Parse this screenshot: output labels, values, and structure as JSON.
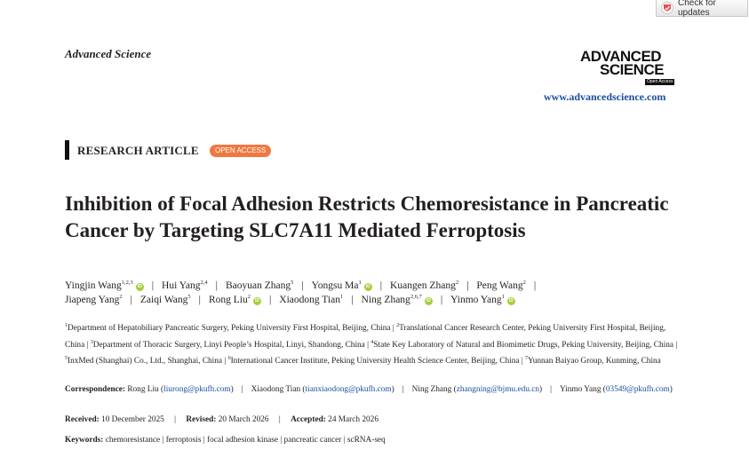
{
  "check_updates": {
    "label": "Check for updates"
  },
  "journal_name": "Advanced Science",
  "logo": {
    "line1": "ADVANCED",
    "line2": "SCIENCE",
    "badge": "Open Access"
  },
  "website": "www.advancedscience.com",
  "article_type": "RESEARCH ARTICLE",
  "access_badge": "OPEN ACCESS",
  "title": "Inhibition of Focal Adhesion Restricts Chemoresistance in Pancreatic Cancer by Targeting SLC7A11 Mediated Ferroptosis",
  "orcid_glyph": "iD",
  "separator": "|",
  "authors_line1": [
    {
      "name": "Yingjin Wang",
      "sup": "1,2,3",
      "orcid": true
    },
    {
      "name": "Hui Yang",
      "sup": "2,4",
      "orcid": false
    },
    {
      "name": "Baoyuan Zhang",
      "sup": "5",
      "orcid": false
    },
    {
      "name": "Yongsu Ma",
      "sup": "1",
      "orcid": true
    },
    {
      "name": "Kuangen Zhang",
      "sup": "2",
      "orcid": false
    },
    {
      "name": "Peng Wang",
      "sup": "2",
      "orcid": false
    }
  ],
  "authors_line2": [
    {
      "name": "Jiapeng Yang",
      "sup": "2",
      "orcid": false
    },
    {
      "name": "Zaiqi Wang",
      "sup": "5",
      "orcid": false
    },
    {
      "name": "Rong Liu",
      "sup": "2",
      "orcid": true
    },
    {
      "name": "Xiaodong Tian",
      "sup": "1",
      "orcid": false
    },
    {
      "name": "Ning Zhang",
      "sup": "2,6,7",
      "orcid": true
    },
    {
      "name": "Yinmo Yang",
      "sup": "1",
      "orcid": true
    }
  ],
  "affiliations": [
    {
      "num": "1",
      "text": "Department of Hepatobiliary Pancreatic Surgery, Peking University First Hospital, Beijing, China"
    },
    {
      "num": "2",
      "text": "Translational Cancer Research Center, Peking University First Hospital, Beijing, China"
    },
    {
      "num": "3",
      "text": "Department of Thoracic Surgery, Linyi People’s Hospital, Linyi, Shandong, China"
    },
    {
      "num": "4",
      "text": "State Key Laboratory of Natural and Biomimetic Drugs, Peking University, Beijing, China"
    },
    {
      "num": "5",
      "text": "InxMed (Shanghai) Co., Ltd., Shanghai, China"
    },
    {
      "num": "6",
      "text": "International Cancer Institute, Peking University Health Science Center, Beijing, China"
    },
    {
      "num": "7",
      "text": "Yunnan Baiyao Group, Kunming, China"
    }
  ],
  "correspondence": {
    "label": "Correspondence:",
    "entries": [
      {
        "name": "Rong Liu",
        "email": "liurong@pkufh.com"
      },
      {
        "name": "Xiaodong Tian",
        "email": "tianxiaodong@pkufh.com"
      },
      {
        "name": "Ning Zhang",
        "email": "zhangning@bjmu.edu.cn"
      },
      {
        "name": "Yinmo Yang",
        "email": "03549@pkufh.com"
      }
    ]
  },
  "dates": {
    "received_label": "Received:",
    "received": "10 December 2025",
    "revised_label": "Revised:",
    "revised": "20 March 2026",
    "accepted_label": "Accepted:",
    "accepted": "24 March 2026"
  },
  "keywords": {
    "label": "Keywords:",
    "items": [
      "chemoresistance",
      "ferroptosis",
      "focal adhesion kinase",
      "pancreatic cancer",
      "scRNA-seq"
    ]
  }
}
